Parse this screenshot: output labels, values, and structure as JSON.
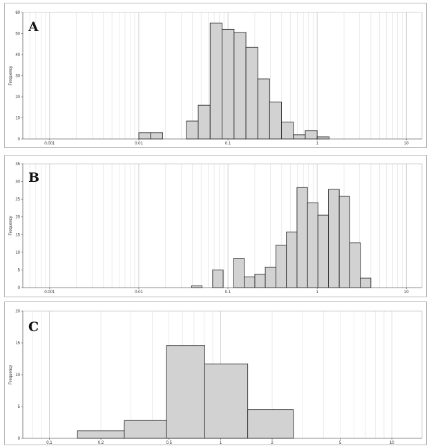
{
  "chart_data": [
    {
      "id": "A",
      "type": "bar",
      "panel_label": "A",
      "ylabel": "Frequency",
      "xscale": "log",
      "xlim": [
        0.0005,
        15
      ],
      "ylim": [
        0,
        60
      ],
      "xticks": [
        0.001,
        0.01,
        0.1,
        1,
        10
      ],
      "xtick_labels": [
        "0.001",
        "0.01",
        "0.1",
        "1",
        "10"
      ],
      "yticks": [
        0,
        10,
        20,
        30,
        40,
        50,
        60
      ],
      "grid": true,
      "bins": [
        {
          "x0": 0.01,
          "x1": 0.0136,
          "value": 3
        },
        {
          "x0": 0.0136,
          "x1": 0.0185,
          "value": 3
        },
        {
          "x0": 0.0342,
          "x1": 0.0464,
          "value": 8.5
        },
        {
          "x0": 0.0464,
          "x1": 0.0631,
          "value": 16
        },
        {
          "x0": 0.0631,
          "x1": 0.0858,
          "value": 55
        },
        {
          "x0": 0.0858,
          "x1": 0.117,
          "value": 52
        },
        {
          "x0": 0.117,
          "x1": 0.159,
          "value": 50.5
        },
        {
          "x0": 0.159,
          "x1": 0.216,
          "value": 43.5
        },
        {
          "x0": 0.216,
          "x1": 0.293,
          "value": 28.5
        },
        {
          "x0": 0.293,
          "x1": 0.398,
          "value": 17.5
        },
        {
          "x0": 0.398,
          "x1": 0.541,
          "value": 8
        },
        {
          "x0": 0.541,
          "x1": 0.736,
          "value": 2
        },
        {
          "x0": 0.736,
          "x1": 1.0,
          "value": 4
        },
        {
          "x0": 1.0,
          "x1": 1.36,
          "value": 1
        }
      ]
    },
    {
      "id": "B",
      "type": "bar",
      "panel_label": "B",
      "ylabel": "Frequency",
      "xscale": "log",
      "xlim": [
        0.0005,
        15
      ],
      "ylim": [
        0,
        35
      ],
      "xticks": [
        0.001,
        0.01,
        0.1,
        1,
        10
      ],
      "xtick_labels": [
        "0.001",
        "0.01",
        "0.1",
        "1",
        "10"
      ],
      "yticks": [
        0,
        5,
        10,
        15,
        20,
        25,
        30,
        35
      ],
      "grid": true,
      "bins": [
        {
          "x0": 0.0391,
          "x1": 0.0512,
          "value": 0.5
        },
        {
          "x0": 0.0673,
          "x1": 0.0883,
          "value": 5
        },
        {
          "x0": 0.116,
          "x1": 0.152,
          "value": 8.3
        },
        {
          "x0": 0.152,
          "x1": 0.2,
          "value": 3
        },
        {
          "x0": 0.2,
          "x1": 0.262,
          "value": 3.8
        },
        {
          "x0": 0.262,
          "x1": 0.345,
          "value": 5.8
        },
        {
          "x0": 0.345,
          "x1": 0.452,
          "value": 12
        },
        {
          "x0": 0.452,
          "x1": 0.594,
          "value": 15.7
        },
        {
          "x0": 0.594,
          "x1": 0.78,
          "value": 28.3
        },
        {
          "x0": 0.78,
          "x1": 1.02,
          "value": 24
        },
        {
          "x0": 1.02,
          "x1": 1.34,
          "value": 20.5
        },
        {
          "x0": 1.34,
          "x1": 1.77,
          "value": 27.8
        },
        {
          "x0": 1.77,
          "x1": 2.32,
          "value": 25.8
        },
        {
          "x0": 2.32,
          "x1": 3.05,
          "value": 12.7
        },
        {
          "x0": 3.05,
          "x1": 4.0,
          "value": 2.7
        }
      ]
    },
    {
      "id": "C",
      "type": "bar",
      "panel_label": "C",
      "ylabel": "Frequency",
      "xscale": "log",
      "xlim": [
        0.07,
        15
      ],
      "ylim": [
        0,
        20
      ],
      "xticks": [
        0.1,
        0.2,
        0.5,
        1,
        2,
        5,
        10
      ],
      "xtick_labels": [
        "0.1",
        "0.2",
        "0.5",
        "1",
        "2",
        "5",
        "10"
      ],
      "yticks": [
        0,
        5,
        10,
        15,
        20
      ],
      "grid": true,
      "bins": [
        {
          "x0": 0.146,
          "x1": 0.274,
          "value": 1.2
        },
        {
          "x0": 0.274,
          "x1": 0.483,
          "value": 2.8
        },
        {
          "x0": 0.483,
          "x1": 0.808,
          "value": 14.6
        },
        {
          "x0": 0.808,
          "x1": 1.44,
          "value": 11.7
        },
        {
          "x0": 1.44,
          "x1": 2.66,
          "value": 4.5
        }
      ]
    }
  ]
}
